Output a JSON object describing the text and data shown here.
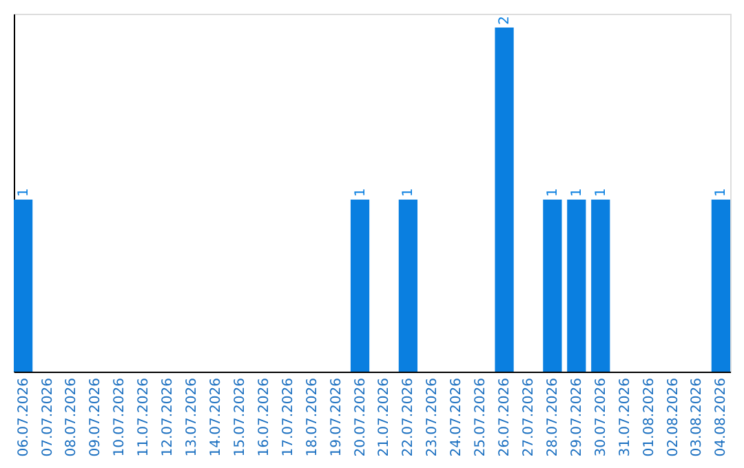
{
  "chart_data": {
    "type": "bar",
    "categories": [
      "06.07.2026",
      "07.07.2026",
      "08.07.2026",
      "09.07.2026",
      "10.07.2026",
      "11.07.2026",
      "12.07.2026",
      "13.07.2026",
      "14.07.2026",
      "15.07.2026",
      "16.07.2026",
      "17.07.2026",
      "18.07.2026",
      "19.07.2026",
      "20.07.2026",
      "21.07.2026",
      "22.07.2026",
      "23.07.2026",
      "24.07.2026",
      "25.07.2026",
      "26.07.2026",
      "27.07.2026",
      "28.07.2026",
      "29.07.2026",
      "30.07.2026",
      "31.07.2026",
      "01.08.2026",
      "02.08.2026",
      "03.08.2026",
      "04.08.2026"
    ],
    "values": [
      1,
      0,
      0,
      0,
      0,
      0,
      0,
      0,
      0,
      0,
      0,
      0,
      0,
      0,
      1,
      0,
      1,
      0,
      0,
      0,
      2,
      0,
      1,
      1,
      1,
      0,
      0,
      0,
      0,
      1
    ],
    "value_labels": [
      "1",
      null,
      null,
      null,
      null,
      null,
      null,
      null,
      null,
      null,
      null,
      null,
      null,
      null,
      "1",
      null,
      "1",
      null,
      null,
      null,
      "2",
      null,
      "1",
      "1",
      "1",
      null,
      null,
      null,
      null,
      "1"
    ],
    "color": "#0a7fe0",
    "ylim": [
      0,
      2.08
    ],
    "tick_labels": "x",
    "grid": false
  }
}
